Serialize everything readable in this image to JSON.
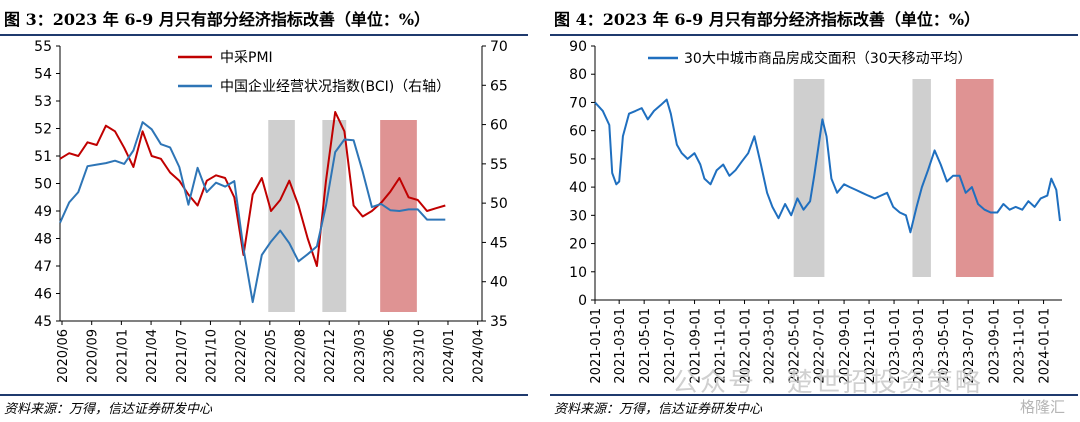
{
  "colors": {
    "pmi": "#c00000",
    "bci": "#2e75b6",
    "area": "#1f6fbf",
    "gray_band": "#bfbfbf",
    "red_band": "#d98080",
    "rule": "#1f3a6e"
  },
  "watermark": {
    "text": "公众号 · 楚世招投资策略",
    "logo": "格隆汇"
  },
  "chart_data": [
    {
      "type": "line",
      "panel_title": "图 3：2023 年 6-9 月只有部分经济指标改善（单位：%）",
      "source": "资料来源：万得，信达证券研发中心",
      "categories": [
        "2020/06",
        "2020/09",
        "2021/01",
        "2021/04",
        "2021/07",
        "2021/10",
        "2022/02",
        "2022/05",
        "2022/08",
        "2022/12",
        "2023/03",
        "2023/06",
        "2023/10",
        "2024/01",
        "2024/04"
      ],
      "xlim": [
        0,
        46
      ],
      "ylim": [
        45,
        55
      ],
      "y_ticks": [
        45,
        46,
        47,
        48,
        49,
        50,
        51,
        52,
        53,
        54,
        55
      ],
      "y2lim": [
        35,
        70
      ],
      "y2_ticks": [
        35,
        40,
        45,
        50,
        55,
        60,
        65,
        70
      ],
      "legend_position": "top-right",
      "bands": [
        {
          "from": 22.7,
          "to": 25.6,
          "color": "gray"
        },
        {
          "from": 28.6,
          "to": 31.2,
          "color": "gray"
        },
        {
          "from": 34.9,
          "to": 38.9,
          "color": "red"
        }
      ],
      "series": [
        {
          "name": "中采PMI",
          "axis": "left",
          "x": [
            0,
            1,
            2,
            3,
            4,
            5,
            6,
            7,
            8,
            9,
            10,
            11,
            12,
            13,
            14,
            15,
            16,
            17,
            18,
            19,
            20,
            21,
            22,
            23,
            24,
            25,
            26,
            27,
            28,
            29,
            30,
            31,
            32,
            33,
            34,
            35,
            36,
            37,
            38,
            39,
            40,
            41,
            42
          ],
          "values": [
            50.9,
            51.1,
            51.0,
            51.5,
            51.4,
            52.1,
            51.9,
            51.3,
            50.6,
            51.9,
            51.0,
            50.9,
            50.4,
            50.1,
            49.6,
            49.2,
            50.1,
            50.3,
            50.2,
            49.5,
            47.4,
            49.6,
            50.2,
            49.0,
            49.4,
            50.1,
            49.2,
            48.0,
            47.0,
            50.1,
            52.6,
            51.9,
            49.2,
            48.8,
            49.0,
            49.3,
            49.7,
            50.2,
            49.5,
            49.4,
            49.0,
            49.1,
            49.2
          ]
        },
        {
          "name": "中国企业经营状况指数(BCI)（右轴）",
          "axis": "right",
          "x": [
            0,
            1,
            2,
            3,
            4,
            5,
            6,
            7,
            8,
            9,
            10,
            11,
            12,
            13,
            14,
            15,
            16,
            17,
            18,
            19,
            20,
            21,
            22,
            23,
            24,
            25,
            26,
            27,
            28,
            29,
            30,
            31,
            32,
            33,
            34,
            35,
            36,
            37,
            38,
            39,
            40,
            41,
            42
          ],
          "values": [
            47.5,
            50.1,
            51.4,
            54.7,
            54.9,
            55.1,
            55.4,
            55.0,
            56.7,
            60.3,
            59.4,
            57.5,
            57.1,
            54.6,
            49.8,
            54.5,
            51.4,
            52.6,
            52.1,
            52.8,
            44.2,
            37.4,
            43.4,
            45.1,
            46.5,
            44.9,
            42.6,
            43.5,
            44.5,
            49.7,
            56.5,
            58.1,
            58.0,
            54.0,
            49.5,
            49.9,
            49.1,
            49.0,
            49.2,
            49.2,
            47.9,
            47.9,
            47.9
          ]
        }
      ]
    },
    {
      "type": "area",
      "panel_title": "图 4：2023 年 6-9 月只有部分经济指标改善（单位：%）",
      "source": "资料来源：万得，信达证券研发中心",
      "categories": [
        "2021-01-01",
        "2021-03-01",
        "2021-05-01",
        "2021-07-01",
        "2021-09-01",
        "2021-11-01",
        "2022-01-01",
        "2022-03-01",
        "2022-05-01",
        "2022-07-01",
        "2022-09-01",
        "2022-11-01",
        "2023-01-01",
        "2023-03-01",
        "2023-05-01",
        "2023-07-01",
        "2023-09-01",
        "2023-11-01",
        "2024-01-01"
      ],
      "ylim": [
        0,
        90
      ],
      "y_ticks": [
        0,
        10,
        20,
        30,
        40,
        50,
        60,
        70,
        80,
        90
      ],
      "legend_position": "top-left",
      "bands": [
        {
          "from": "2022-05-01",
          "to": "2022-07-15",
          "color": "gray"
        },
        {
          "from": "2023-02-15",
          "to": "2023-04-01",
          "color": "gray"
        },
        {
          "from": "2023-06-01",
          "to": "2023-09-01",
          "color": "red"
        }
      ],
      "series": [
        {
          "name": "30大中城市商品房成交面积（30天移动平均）",
          "x": [
            "2021-01-01",
            "2021-01-20",
            "2021-02-05",
            "2021-02-12",
            "2021-02-22",
            "2021-03-01",
            "2021-03-10",
            "2021-03-25",
            "2021-04-10",
            "2021-04-25",
            "2021-05-10",
            "2021-05-25",
            "2021-06-10",
            "2021-06-25",
            "2021-07-05",
            "2021-07-20",
            "2021-08-01",
            "2021-08-15",
            "2021-09-01",
            "2021-09-15",
            "2021-09-25",
            "2021-10-10",
            "2021-10-25",
            "2021-11-10",
            "2021-11-25",
            "2021-12-10",
            "2021-12-25",
            "2022-01-10",
            "2022-01-25",
            "2022-02-10",
            "2022-02-25",
            "2022-03-10",
            "2022-03-25",
            "2022-04-10",
            "2022-04-25",
            "2022-05-10",
            "2022-05-25",
            "2022-06-10",
            "2022-06-20",
            "2022-07-01",
            "2022-07-10",
            "2022-07-20",
            "2022-08-01",
            "2022-08-15",
            "2022-09-01",
            "2022-09-15",
            "2022-09-30",
            "2022-10-15",
            "2022-10-30",
            "2022-11-15",
            "2022-11-30",
            "2022-12-15",
            "2022-12-30",
            "2023-01-15",
            "2023-01-30",
            "2023-02-10",
            "2023-02-25",
            "2023-03-10",
            "2023-03-25",
            "2023-04-10",
            "2023-04-25",
            "2023-05-10",
            "2023-05-25",
            "2023-06-10",
            "2023-06-25",
            "2023-07-10",
            "2023-07-25",
            "2023-08-10",
            "2023-08-25",
            "2023-09-10",
            "2023-09-25",
            "2023-10-10",
            "2023-10-25",
            "2023-11-10",
            "2023-11-25",
            "2023-12-10",
            "2023-12-25",
            "2024-01-10",
            "2024-01-20",
            "2024-02-01",
            "2024-02-10"
          ],
          "values": [
            70,
            67,
            62,
            45,
            41,
            42,
            58,
            66,
            67,
            68,
            64,
            67,
            69,
            71,
            66,
            55,
            52,
            50,
            52,
            48,
            43,
            41,
            46,
            48,
            44,
            46,
            49,
            52,
            58,
            48,
            38,
            33,
            29,
            34,
            30,
            36,
            32,
            35,
            44,
            55,
            64,
            58,
            43,
            38,
            41,
            40,
            39,
            38,
            37,
            36,
            37,
            38,
            33,
            31,
            30,
            24,
            33,
            40,
            46,
            53,
            48,
            42,
            44,
            44,
            38,
            40,
            34,
            32,
            31,
            31,
            34,
            32,
            33,
            32,
            35,
            33,
            36,
            37,
            43,
            39,
            28
          ]
        }
      ]
    }
  ]
}
